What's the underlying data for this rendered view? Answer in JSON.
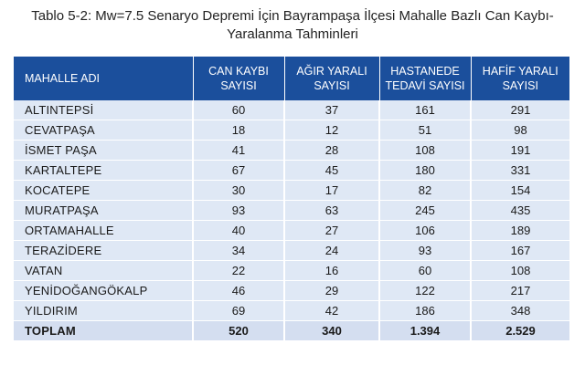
{
  "caption": {
    "line1": "Tablo 5-2: Mw=7.5 Senaryo Depremi İçin Bayrampaşa İlçesi Mahalle Bazlı Can Kaybı-",
    "line2": "Yaralanma Tahminleri"
  },
  "table": {
    "headers": [
      {
        "line1": "MAHALLE ADI",
        "line2": ""
      },
      {
        "line1": "CAN KAYBI",
        "line2": "SAYISI"
      },
      {
        "line1": "AĞIR YARALI",
        "line2": "SAYISI"
      },
      {
        "line1": "HASTANEDE",
        "line2": "TEDAVİ SAYISI"
      },
      {
        "line1": "HAFİF YARALI",
        "line2": "SAYISI"
      }
    ],
    "rows": [
      [
        "ALTINTEPSİ",
        "60",
        "37",
        "161",
        "291"
      ],
      [
        "CEVATPAŞA",
        "18",
        "12",
        "51",
        "98"
      ],
      [
        "İSMET PAŞA",
        "41",
        "28",
        "108",
        "191"
      ],
      [
        "KARTALTEPE",
        "67",
        "45",
        "180",
        "331"
      ],
      [
        "KOCATEPE",
        "30",
        "17",
        "82",
        "154"
      ],
      [
        "MURATPAŞA",
        "93",
        "63",
        "245",
        "435"
      ],
      [
        "ORTAMAHALLE",
        "40",
        "27",
        "106",
        "189"
      ],
      [
        "TERAZİDERE",
        "34",
        "24",
        "93",
        "167"
      ],
      [
        "VATAN",
        "22",
        "16",
        "60",
        "108"
      ],
      [
        "YENİDOĞANGÖKALP",
        "46",
        "29",
        "122",
        "217"
      ],
      [
        "YILDIRIM",
        "69",
        "42",
        "186",
        "348"
      ]
    ],
    "total": [
      "TOPLAM",
      "520",
      "340",
      "1.394",
      "2.529"
    ]
  },
  "colors": {
    "header_bg": "#1b4f9c",
    "row_bg": "#dfe8f5"
  }
}
